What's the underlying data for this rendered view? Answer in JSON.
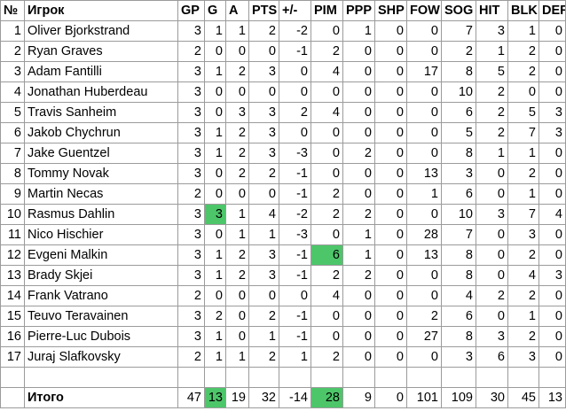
{
  "headers": [
    "№",
    "Игрок",
    "GP",
    "G",
    "A",
    "PTS",
    "+/-",
    "PIM",
    "PPP",
    "SHP",
    "FOW",
    "SOG",
    "HIT",
    "BLK",
    "DEF"
  ],
  "highlight_color": "#4dc66a",
  "rows": [
    {
      "n": "1",
      "player": "Oliver Bjorkstrand",
      "gp": "3",
      "g": "1",
      "a": "1",
      "pts": "2",
      "pm": "-2",
      "pim": "0",
      "ppp": "1",
      "shp": "0",
      "fow": "0",
      "sog": "7",
      "hit": "3",
      "blk": "1",
      "def": "0"
    },
    {
      "n": "2",
      "player": "Ryan Graves",
      "gp": "2",
      "g": "0",
      "a": "0",
      "pts": "0",
      "pm": "-1",
      "pim": "2",
      "ppp": "0",
      "shp": "0",
      "fow": "0",
      "sog": "2",
      "hit": "1",
      "blk": "2",
      "def": "0"
    },
    {
      "n": "3",
      "player": "Adam Fantilli",
      "gp": "3",
      "g": "1",
      "a": "2",
      "pts": "3",
      "pm": "0",
      "pim": "4",
      "ppp": "0",
      "shp": "0",
      "fow": "17",
      "sog": "8",
      "hit": "5",
      "blk": "2",
      "def": "0"
    },
    {
      "n": "4",
      "player": "Jonathan Huberdeau",
      "gp": "3",
      "g": "0",
      "a": "0",
      "pts": "0",
      "pm": "0",
      "pim": "0",
      "ppp": "0",
      "shp": "0",
      "fow": "0",
      "sog": "10",
      "hit": "2",
      "blk": "0",
      "def": "0"
    },
    {
      "n": "5",
      "player": "Travis Sanheim",
      "gp": "3",
      "g": "0",
      "a": "3",
      "pts": "3",
      "pm": "2",
      "pim": "4",
      "ppp": "0",
      "shp": "0",
      "fow": "0",
      "sog": "6",
      "hit": "2",
      "blk": "5",
      "def": "3"
    },
    {
      "n": "6",
      "player": "Jakob Chychrun",
      "gp": "3",
      "g": "1",
      "a": "2",
      "pts": "3",
      "pm": "0",
      "pim": "0",
      "ppp": "0",
      "shp": "0",
      "fow": "0",
      "sog": "5",
      "hit": "2",
      "blk": "7",
      "def": "3"
    },
    {
      "n": "7",
      "player": "Jake Guentzel",
      "gp": "3",
      "g": "1",
      "a": "2",
      "pts": "3",
      "pm": "-3",
      "pim": "0",
      "ppp": "2",
      "shp": "0",
      "fow": "0",
      "sog": "8",
      "hit": "1",
      "blk": "1",
      "def": "0"
    },
    {
      "n": "8",
      "player": "Tommy Novak",
      "gp": "3",
      "g": "0",
      "a": "2",
      "pts": "2",
      "pm": "-1",
      "pim": "0",
      "ppp": "0",
      "shp": "0",
      "fow": "13",
      "sog": "3",
      "hit": "0",
      "blk": "2",
      "def": "0"
    },
    {
      "n": "9",
      "player": "Martin Necas",
      "gp": "2",
      "g": "0",
      "a": "0",
      "pts": "0",
      "pm": "-1",
      "pim": "2",
      "ppp": "0",
      "shp": "0",
      "fow": "1",
      "sog": "6",
      "hit": "0",
      "blk": "1",
      "def": "0"
    },
    {
      "n": "10",
      "player": "Rasmus Dahlin",
      "gp": "3",
      "g": "3",
      "a": "1",
      "pts": "4",
      "pm": "-2",
      "pim": "2",
      "ppp": "2",
      "shp": "0",
      "fow": "0",
      "sog": "10",
      "hit": "3",
      "blk": "7",
      "def": "4"
    },
    {
      "n": "11",
      "player": "Nico Hischier",
      "gp": "3",
      "g": "0",
      "a": "1",
      "pts": "1",
      "pm": "-3",
      "pim": "0",
      "ppp": "1",
      "shp": "0",
      "fow": "28",
      "sog": "7",
      "hit": "0",
      "blk": "3",
      "def": "0"
    },
    {
      "n": "12",
      "player": "Evgeni Malkin",
      "gp": "3",
      "g": "1",
      "a": "2",
      "pts": "3",
      "pm": "-1",
      "pim": "6",
      "ppp": "1",
      "shp": "0",
      "fow": "13",
      "sog": "8",
      "hit": "0",
      "blk": "2",
      "def": "0"
    },
    {
      "n": "13",
      "player": "Brady Skjei",
      "gp": "3",
      "g": "1",
      "a": "2",
      "pts": "3",
      "pm": "-1",
      "pim": "2",
      "ppp": "2",
      "shp": "0",
      "fow": "0",
      "sog": "8",
      "hit": "0",
      "blk": "4",
      "def": "3"
    },
    {
      "n": "14",
      "player": "Frank Vatrano",
      "gp": "2",
      "g": "0",
      "a": "0",
      "pts": "0",
      "pm": "0",
      "pim": "4",
      "ppp": "0",
      "shp": "0",
      "fow": "0",
      "sog": "4",
      "hit": "2",
      "blk": "2",
      "def": "0"
    },
    {
      "n": "15",
      "player": "Teuvo Teravainen",
      "gp": "3",
      "g": "2",
      "a": "0",
      "pts": "2",
      "pm": "-1",
      "pim": "0",
      "ppp": "0",
      "shp": "0",
      "fow": "2",
      "sog": "6",
      "hit": "0",
      "blk": "1",
      "def": "0"
    },
    {
      "n": "16",
      "player": "Pierre-Luc Dubois",
      "gp": "3",
      "g": "1",
      "a": "0",
      "pts": "1",
      "pm": "-1",
      "pim": "0",
      "ppp": "0",
      "shp": "0",
      "fow": "27",
      "sog": "8",
      "hit": "3",
      "blk": "2",
      "def": "0"
    },
    {
      "n": "17",
      "player": "Juraj Slafkovsky",
      "gp": "2",
      "g": "1",
      "a": "1",
      "pts": "2",
      "pm": "1",
      "pim": "2",
      "ppp": "0",
      "shp": "0",
      "fow": "0",
      "sog": "3",
      "hit": "6",
      "blk": "3",
      "def": "0"
    }
  ],
  "highlights": [
    {
      "row": 10,
      "col": "g"
    },
    {
      "row": 12,
      "col": "pim"
    }
  ],
  "total": {
    "label": "Итого",
    "gp": "47",
    "g": "13",
    "a": "19",
    "pts": "32",
    "pm": "-14",
    "pim": "28",
    "ppp": "9",
    "shp": "0",
    "fow": "101",
    "sog": "109",
    "hit": "30",
    "blk": "45",
    "def": "13",
    "highlight_cols": [
      "g",
      "pim"
    ]
  }
}
